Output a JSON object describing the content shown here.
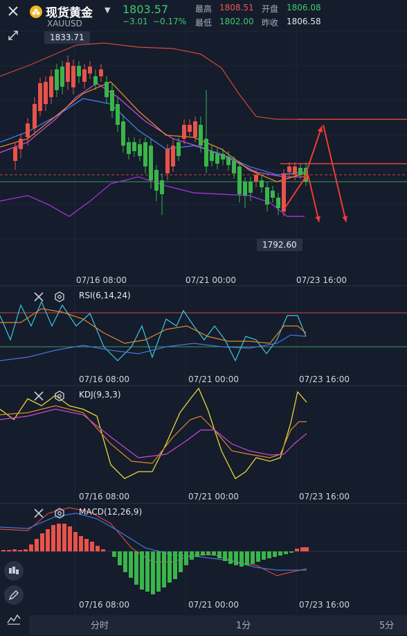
{
  "header": {
    "title": "现货黄金",
    "symbol": "XAUUSD",
    "price": "1803.57",
    "change": "−3.01",
    "change_pct": "−0.17%",
    "high_label": "最高",
    "high_value": "1808.51",
    "open_label": "开盘",
    "open_value": "1806.08",
    "low_label": "最低",
    "low_value": "1802.00",
    "prev_close_label": "昨收",
    "prev_close_value": "1806.58"
  },
  "main_chart": {
    "max_label": "1833.71",
    "min_label": "1792.60",
    "x_labels": [
      "07/16 08:00",
      "07/21 00:00",
      "07/23 16:00"
    ]
  },
  "indicators": {
    "rsi_title": "RSI(6,14,24)",
    "kdj_title": "KDJ(9,3,3)",
    "macd_title": "MACD(12,26,9)",
    "x_labels": [
      "07/16 08:00",
      "07/21 00:00",
      "07/23 16:00"
    ]
  },
  "timeframes": [
    "分时",
    "1分",
    "5分"
  ],
  "colors": {
    "up": "#e8534a",
    "down": "#3ab54a",
    "background": "#151c2c"
  },
  "icons": [
    "close-icon",
    "gold-coin-icon",
    "collapse-icon",
    "settings-icon",
    "candlestick-tool-icon",
    "draw-pen-icon",
    "indicator-tool-icon"
  ]
}
